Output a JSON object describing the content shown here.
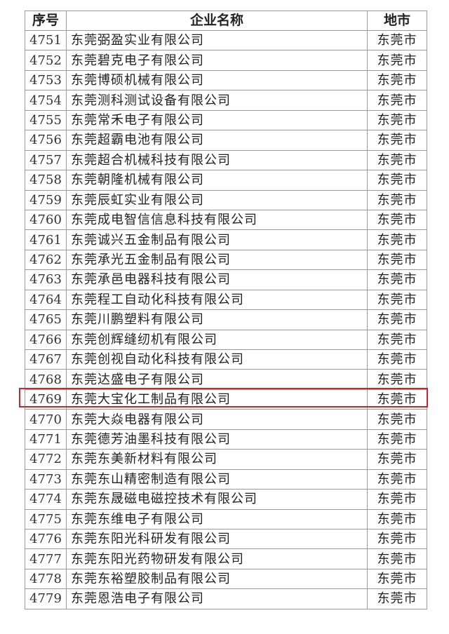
{
  "table": {
    "headers": [
      "序号",
      "企业名称",
      "地市"
    ],
    "rows": [
      {
        "no": "4751",
        "name": "东莞弼盈实业有限公司",
        "city": "东莞市"
      },
      {
        "no": "4752",
        "name": "东莞碧克电子有限公司",
        "city": "东莞市"
      },
      {
        "no": "4753",
        "name": "东莞博硕机械有限公司",
        "city": "东莞市"
      },
      {
        "no": "4754",
        "name": "东莞测科测试设备有限公司",
        "city": "东莞市"
      },
      {
        "no": "4755",
        "name": "东莞常禾电子有限公司",
        "city": "东莞市"
      },
      {
        "no": "4756",
        "name": "东莞超霸电池有限公司",
        "city": "东莞市"
      },
      {
        "no": "4757",
        "name": "东莞超合机械科技有限公司",
        "city": "东莞市"
      },
      {
        "no": "4758",
        "name": "东莞朝隆机械有限公司",
        "city": "东莞市"
      },
      {
        "no": "4759",
        "name": "东莞辰虹实业有限公司",
        "city": "东莞市"
      },
      {
        "no": "4760",
        "name": "东莞成电智信信息科技有限公司",
        "city": "东莞市"
      },
      {
        "no": "4761",
        "name": "东莞诚兴五金制品有限公司",
        "city": "东莞市"
      },
      {
        "no": "4762",
        "name": "东莞承光五金制品有限公司",
        "city": "东莞市"
      },
      {
        "no": "4763",
        "name": "东莞承邑电器科技有限公司",
        "city": "东莞市"
      },
      {
        "no": "4764",
        "name": "东莞程工自动化科技有限公司",
        "city": "东莞市"
      },
      {
        "no": "4765",
        "name": "东莞川鹏塑料有限公司",
        "city": "东莞市"
      },
      {
        "no": "4766",
        "name": "东莞创辉缝纫机有限公司",
        "city": "东莞市"
      },
      {
        "no": "4767",
        "name": "东莞创视自动化科技有限公司",
        "city": "东莞市"
      },
      {
        "no": "4768",
        "name": "东莞达盛电子有限公司",
        "city": "东莞市"
      },
      {
        "no": "4769",
        "name": "东莞大宝化工制品有限公司",
        "city": "东莞市"
      },
      {
        "no": "4770",
        "name": "东莞大焱电器有限公司",
        "city": "东莞市"
      },
      {
        "no": "4771",
        "name": "东莞德芳油墨科技有限公司",
        "city": "东莞市"
      },
      {
        "no": "4772",
        "name": "东莞东美新材料有限公司",
        "city": "东莞市"
      },
      {
        "no": "4773",
        "name": "东莞东山精密制造有限公司",
        "city": "东莞市"
      },
      {
        "no": "4774",
        "name": "东莞东晟磁电磁控技术有限公司",
        "city": "东莞市"
      },
      {
        "no": "4775",
        "name": "东莞东维电子有限公司",
        "city": "东莞市"
      },
      {
        "no": "4776",
        "name": "东莞东阳光科研发有限公司",
        "city": "东莞市"
      },
      {
        "no": "4777",
        "name": "东莞东阳光药物研发有限公司",
        "city": "东莞市"
      },
      {
        "no": "4778",
        "name": "东莞东裕塑胶制品有限公司",
        "city": "东莞市"
      },
      {
        "no": "4779",
        "name": "东莞恩浩电子有限公司",
        "city": "东莞市"
      }
    ],
    "highlighted_row": "4769",
    "highlight_color": "#d0242b"
  }
}
